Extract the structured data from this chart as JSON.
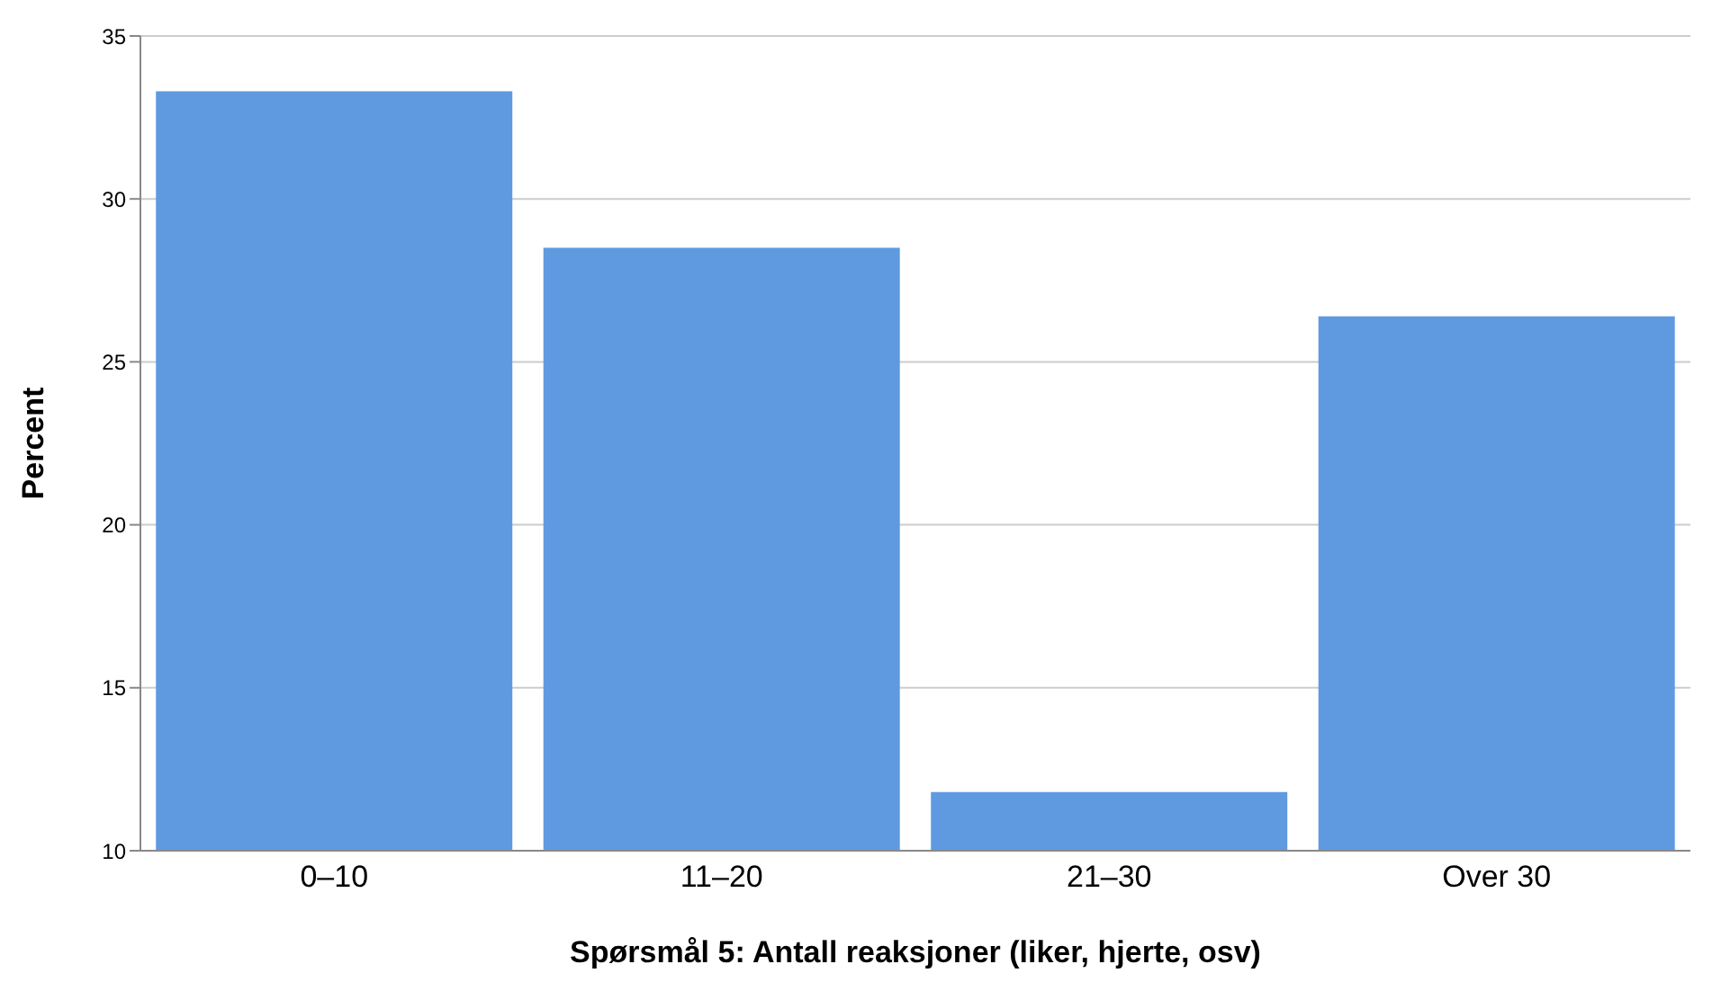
{
  "chart_data": {
    "type": "bar",
    "xlabel": "Spørsmål 5: Antall reaksjoner (liker, hjerte, osv)",
    "ylabel": "Percent",
    "categories": [
      "0–10",
      "11–20",
      "21–30",
      "Over 30"
    ],
    "values": [
      33.3,
      28.5,
      11.8,
      26.4
    ],
    "color": "#5f9ae0",
    "ylim": [
      10,
      35
    ],
    "yticks": [
      10,
      15,
      20,
      25,
      30,
      35
    ],
    "grid": "y"
  }
}
